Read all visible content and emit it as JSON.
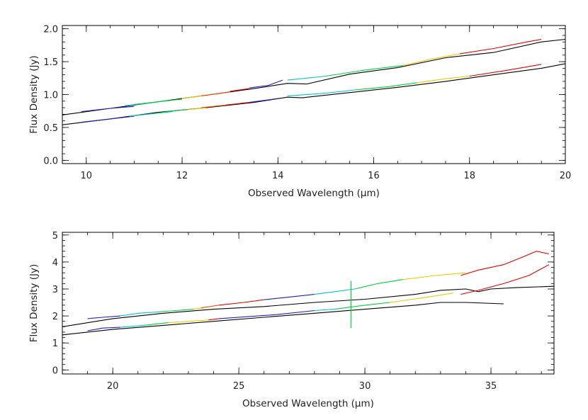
{
  "chart_data": [
    {
      "type": "line",
      "xlabel": "Observed Wavelength (μm)",
      "ylabel": "Flux Density (Jy)",
      "xlim": [
        9.5,
        20
      ],
      "ylim": [
        -0.05,
        2.05
      ],
      "xticks": [
        10,
        12,
        14,
        16,
        18,
        20
      ],
      "yticks": [
        0.0,
        0.5,
        1.0,
        1.5,
        2.0
      ],
      "ytick_labels": [
        "0.0",
        "0.5",
        "1.0",
        "1.5",
        "2.0"
      ],
      "x_minor_step": 0.5,
      "y_minor_step": 0.1,
      "grid": false,
      "series": [
        {
          "color": "#000000",
          "x": [
            9.5,
            10.5,
            11.5,
            12.5,
            13.5,
            14.2,
            14.6,
            15.5,
            16.5,
            17.5,
            18.5,
            19.5,
            20.0
          ],
          "y": [
            0.69,
            0.79,
            0.89,
            0.99,
            1.09,
            1.17,
            1.16,
            1.31,
            1.41,
            1.56,
            1.64,
            1.8,
            1.84
          ]
        },
        {
          "color": "#000000",
          "x": [
            9.5,
            10.5,
            11.5,
            12.5,
            13.5,
            14.2,
            14.5,
            15.5,
            16.5,
            17.5,
            18.5,
            19.5,
            20.0
          ],
          "y": [
            0.54,
            0.63,
            0.73,
            0.8,
            0.88,
            0.96,
            0.95,
            1.03,
            1.11,
            1.2,
            1.3,
            1.4,
            1.47
          ]
        },
        {
          "color": "#1e1ec8",
          "x": [
            9.9,
            10.5,
            11.0
          ],
          "y": [
            0.74,
            0.79,
            0.82
          ]
        },
        {
          "color": "#00c8c8",
          "x": [
            10.8,
            11.3,
            11.7
          ],
          "y": [
            0.83,
            0.87,
            0.91
          ]
        },
        {
          "color": "#00d23c",
          "x": [
            11.0,
            11.5,
            12.0
          ],
          "y": [
            0.85,
            0.89,
            0.93
          ]
        },
        {
          "color": "#f0c800",
          "x": [
            12.0,
            12.3,
            12.6
          ],
          "y": [
            0.94,
            0.97,
            1.0
          ]
        },
        {
          "color": "#ff5000",
          "x": [
            12.4,
            12.7,
            13.0
          ],
          "y": [
            0.98,
            1.01,
            1.04
          ]
        },
        {
          "color": "#e60000",
          "x": [
            13.0,
            13.4
          ],
          "y": [
            1.05,
            1.09
          ]
        },
        {
          "color": "#1e1ec8",
          "x": [
            13.4,
            13.8,
            14.1
          ],
          "y": [
            1.1,
            1.14,
            1.22
          ]
        },
        {
          "color": "#00c8c8",
          "x": [
            14.2,
            14.6,
            15.0
          ],
          "y": [
            1.22,
            1.25,
            1.28
          ]
        },
        {
          "color": "#00d23c",
          "x": [
            15.0,
            15.8,
            16.6
          ],
          "y": [
            1.28,
            1.37,
            1.44
          ]
        },
        {
          "color": "#f0c800",
          "x": [
            16.6,
            17.2,
            17.8
          ],
          "y": [
            1.44,
            1.54,
            1.62
          ]
        },
        {
          "color": "#e60000",
          "x": [
            17.8,
            18.5,
            19.2,
            19.5
          ],
          "y": [
            1.62,
            1.7,
            1.8,
            1.84
          ]
        },
        {
          "color": "#1e1ec8",
          "x": [
            9.9,
            10.5,
            11.0
          ],
          "y": [
            0.58,
            0.63,
            0.67
          ]
        },
        {
          "color": "#00c8c8",
          "x": [
            10.9,
            11.4,
            11.8
          ],
          "y": [
            0.67,
            0.71,
            0.74
          ]
        },
        {
          "color": "#00d23c",
          "x": [
            11.5,
            11.9,
            12.1
          ],
          "y": [
            0.72,
            0.76,
            0.77
          ]
        },
        {
          "color": "#f0c800",
          "x": [
            12.1,
            12.5
          ],
          "y": [
            0.77,
            0.8
          ]
        },
        {
          "color": "#ff5000",
          "x": [
            12.4,
            12.9
          ],
          "y": [
            0.8,
            0.84
          ]
        },
        {
          "color": "#e60000",
          "x": [
            12.9,
            13.4
          ],
          "y": [
            0.84,
            0.88
          ]
        },
        {
          "color": "#1e1ec8",
          "x": [
            13.4,
            14.0
          ],
          "y": [
            0.88,
            0.94
          ]
        },
        {
          "color": "#00c8c8",
          "x": [
            14.2,
            15.0,
            15.6
          ],
          "y": [
            0.98,
            1.02,
            1.07
          ]
        },
        {
          "color": "#00d23c",
          "x": [
            15.6,
            16.3,
            16.9
          ],
          "y": [
            1.07,
            1.12,
            1.18
          ]
        },
        {
          "color": "#f0c800",
          "x": [
            16.9,
            17.5,
            18.0
          ],
          "y": [
            1.18,
            1.24,
            1.28
          ]
        },
        {
          "color": "#e60000",
          "x": [
            18.0,
            18.8,
            19.5
          ],
          "y": [
            1.28,
            1.37,
            1.46
          ]
        }
      ]
    },
    {
      "type": "line",
      "xlabel": "Observed Wavelength (μm)",
      "ylabel": "Flux Density (Jy)",
      "xlim": [
        18,
        37.5
      ],
      "ylim": [
        -0.15,
        5.1
      ],
      "xticks": [
        20,
        25,
        30,
        35
      ],
      "yticks": [
        0,
        1,
        2,
        3,
        4,
        5
      ],
      "ytick_labels": [
        "0",
        "1",
        "2",
        "3",
        "4",
        "5"
      ],
      "x_minor_step": 1,
      "y_minor_step": 0.2,
      "grid": false,
      "series": [
        {
          "color": "#000000",
          "x": [
            18,
            20,
            22,
            24,
            26,
            28,
            30,
            32,
            33,
            34,
            34.5,
            35,
            36,
            37.5
          ],
          "y": [
            1.6,
            1.9,
            2.1,
            2.25,
            2.35,
            2.5,
            2.62,
            2.8,
            2.95,
            3.0,
            2.9,
            3.0,
            3.05,
            3.1
          ]
        },
        {
          "color": "#000000",
          "x": [
            18,
            20,
            22,
            24,
            26,
            28,
            30,
            32,
            33,
            34,
            35.5
          ],
          "y": [
            1.3,
            1.5,
            1.65,
            1.8,
            1.95,
            2.1,
            2.25,
            2.4,
            2.5,
            2.5,
            2.45
          ]
        },
        {
          "color": "#1e1ec8",
          "x": [
            19.0,
            19.6,
            20.3
          ],
          "y": [
            1.9,
            1.95,
            2.0
          ]
        },
        {
          "color": "#00c8c8",
          "x": [
            20.3,
            21.0,
            21.8
          ],
          "y": [
            2.0,
            2.1,
            2.15
          ]
        },
        {
          "color": "#00d23c",
          "x": [
            21.8,
            22.5,
            23.2
          ],
          "y": [
            2.15,
            2.2,
            2.25
          ]
        },
        {
          "color": "#f0c800",
          "x": [
            23.2,
            23.6
          ],
          "y": [
            2.25,
            2.3
          ]
        },
        {
          "color": "#ff5000",
          "x": [
            23.5,
            24.2
          ],
          "y": [
            2.3,
            2.4
          ]
        },
        {
          "color": "#e60000",
          "x": [
            24.2,
            25.2,
            26.0
          ],
          "y": [
            2.4,
            2.5,
            2.6
          ]
        },
        {
          "color": "#1e1ec8",
          "x": [
            26.0,
            27.0,
            28.0
          ],
          "y": [
            2.6,
            2.7,
            2.8
          ]
        },
        {
          "color": "#00c8c8",
          "x": [
            28.0,
            28.8,
            29.6
          ],
          "y": [
            2.8,
            2.9,
            3.0
          ]
        },
        {
          "color": "#00d23c",
          "x": [
            29.6,
            30.5,
            31.5
          ],
          "y": [
            3.0,
            3.2,
            3.35
          ]
        },
        {
          "color": "#f0c800",
          "x": [
            31.5,
            32.8,
            34.0
          ],
          "y": [
            3.35,
            3.5,
            3.6
          ]
        },
        {
          "color": "#e60000",
          "x": [
            33.8,
            34.5,
            35.5,
            36.3,
            36.8,
            37.3
          ],
          "y": [
            3.5,
            3.7,
            3.9,
            4.2,
            4.4,
            4.3
          ]
        },
        {
          "color": "#1e1ec8",
          "x": [
            19.0,
            19.6,
            20.3
          ],
          "y": [
            1.45,
            1.55,
            1.58
          ]
        },
        {
          "color": "#00c8c8",
          "x": [
            20.3,
            21.2
          ],
          "y": [
            1.58,
            1.65
          ]
        },
        {
          "color": "#00d23c",
          "x": [
            21.2,
            22.2
          ],
          "y": [
            1.65,
            1.75
          ]
        },
        {
          "color": "#f0c800",
          "x": [
            22.2,
            23.8
          ],
          "y": [
            1.75,
            1.85
          ]
        },
        {
          "color": "#e60000",
          "x": [
            23.8,
            24.2
          ],
          "y": [
            1.85,
            1.9
          ]
        },
        {
          "color": "#1e1ec8",
          "x": [
            24.2,
            26.5,
            28.0
          ],
          "y": [
            1.9,
            2.05,
            2.2
          ]
        },
        {
          "color": "#00c8c8",
          "x": [
            28.0,
            28.8
          ],
          "y": [
            2.2,
            2.25
          ]
        },
        {
          "color": "#00d23c",
          "x": [
            28.8,
            30.0,
            31.0
          ],
          "y": [
            2.25,
            2.4,
            2.5
          ]
        },
        {
          "color": "#f0c800",
          "x": [
            31.0,
            32.5,
            33.5
          ],
          "y": [
            2.5,
            2.7,
            2.85
          ]
        },
        {
          "color": "#e60000",
          "x": [
            33.8,
            34.5,
            35.5,
            36.5,
            37.3
          ],
          "y": [
            2.8,
            2.95,
            3.2,
            3.5,
            3.9
          ]
        }
      ],
      "spikes": [
        {
          "color": "#00d23c",
          "x": 29.45,
          "y_from": 1.55,
          "y_to": 3.3
        }
      ]
    }
  ]
}
